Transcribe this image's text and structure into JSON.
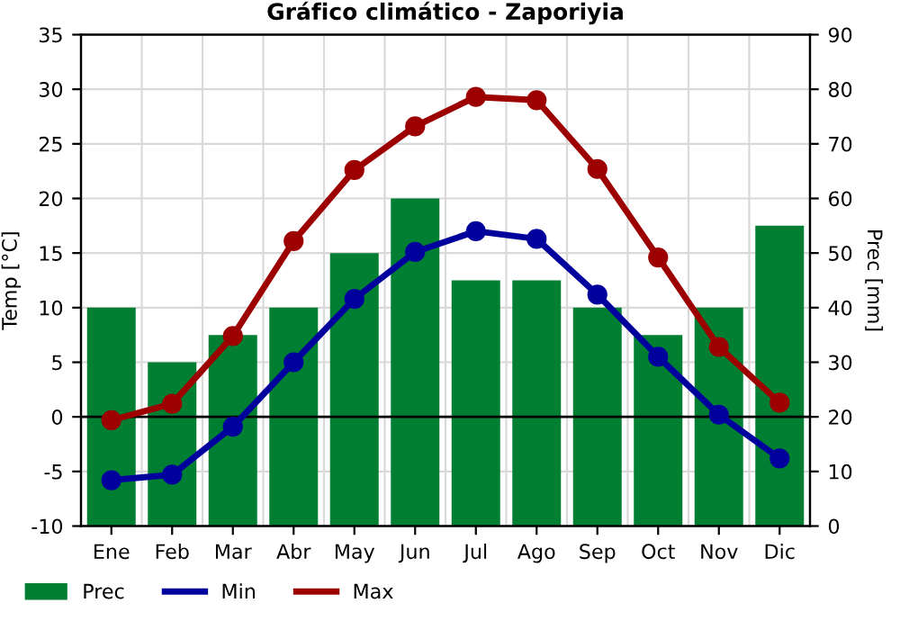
{
  "chart_data": {
    "type": "bar",
    "title": "Gráfico climático - Zaporiyia",
    "ylabel": "Temp [°C]",
    "y2label": "Prec [mm]",
    "categories": [
      "Ene",
      "Feb",
      "Mar",
      "Abr",
      "May",
      "Jun",
      "Jul",
      "Ago",
      "Sep",
      "Oct",
      "Nov",
      "Dic"
    ],
    "series": [
      {
        "name": "Prec",
        "axis": "y2",
        "color": "#007f33",
        "values": [
          40,
          30,
          35,
          40,
          50,
          60,
          45,
          45,
          40,
          35,
          40,
          55
        ]
      },
      {
        "name": "Min",
        "type": "line",
        "color": "#00009c",
        "marker": "circle",
        "values": [
          -5.8,
          -5.3,
          -0.9,
          5.0,
          10.8,
          15.1,
          17.0,
          16.3,
          11.2,
          5.5,
          0.2,
          -3.8
        ]
      },
      {
        "name": "Max",
        "type": "line",
        "color": "#9c0000",
        "marker": "circle",
        "values": [
          -0.3,
          1.2,
          7.4,
          16.1,
          22.6,
          26.6,
          29.3,
          29.0,
          22.7,
          14.6,
          6.4,
          1.3
        ]
      }
    ],
    "ylim": [
      -10,
      35
    ],
    "yticks": [
      -10,
      -5,
      0,
      5,
      10,
      15,
      20,
      25,
      30,
      35
    ],
    "y2lim": [
      0,
      90
    ],
    "y2ticks": [
      0,
      10,
      20,
      30,
      40,
      50,
      60,
      70,
      80,
      90
    ],
    "ref_lines": [
      {
        "axis": "y",
        "value": 0,
        "color": "#000000"
      }
    ],
    "grid": true,
    "legend": "bottom"
  }
}
